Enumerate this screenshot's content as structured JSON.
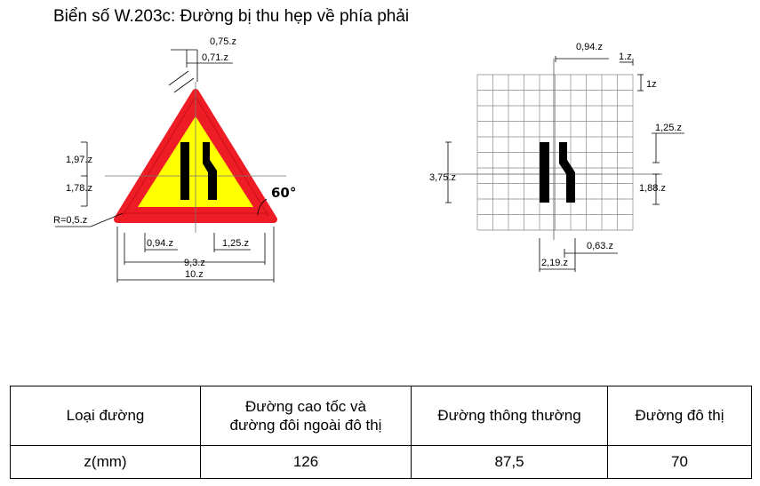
{
  "title": "Biển số W.203c: Đường bị thu hẹp về phía phải",
  "colors": {
    "border": "#ee1c24",
    "fill": "#ffff00",
    "symbol": "#000000",
    "lines": "#000000",
    "grid": "#888888"
  },
  "sign_dimensions": {
    "top_outer": "0,75.z",
    "top_inner": "0,71.z",
    "upper_height": "1,97.z",
    "lower_height": "1,78.z",
    "corner_radius": "R=0,5.z",
    "angle": "60°",
    "bar_left": "0,94.z",
    "bar_right": "1,25.z",
    "inner_width": "9,3.z",
    "outer_width": "10.z"
  },
  "grid_dimensions": {
    "gap_top": "0,94.z",
    "cell_width": "1.z",
    "cell_height": "1z",
    "right_upper": "1,25.z",
    "symbol_height": "3,75.z",
    "right_lower": "1,88.z",
    "bottom_right": "0,63.z",
    "bottom_left": "2,19.z"
  },
  "table": {
    "headers": [
      "Loại đường",
      "Đường cao tốc và\nđường đôi ngoài đô thị",
      "Đường thông thường",
      "Đường đô thị"
    ],
    "row_label": "z(mm)",
    "values": [
      "126",
      "87,5",
      "70"
    ]
  }
}
